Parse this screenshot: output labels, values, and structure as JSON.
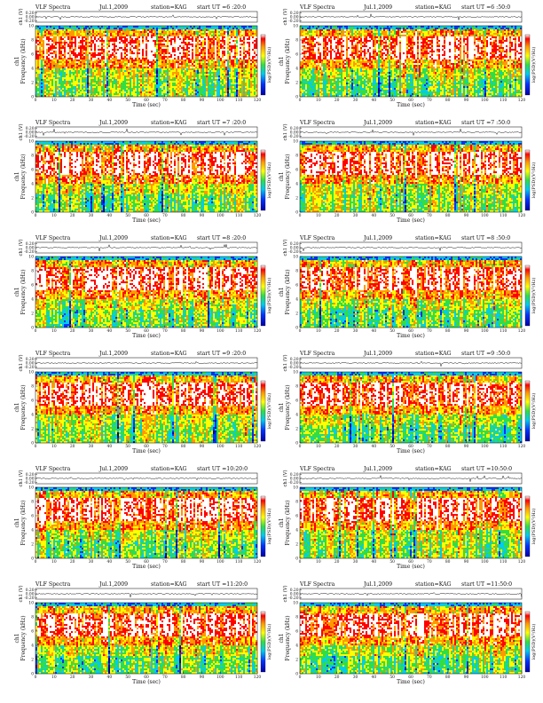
{
  "figure": {
    "prefix": "VLF Spectra",
    "date": "Jul.1,2009",
    "station": "station=KAG",
    "ut_prefix": "start UT ="
  },
  "chart_data": [
    {
      "type": "heatmap",
      "start_ut": "6 :20:0"
    },
    {
      "type": "heatmap",
      "start_ut": "6 :50:0"
    },
    {
      "type": "heatmap",
      "start_ut": "7 :20:0"
    },
    {
      "type": "heatmap",
      "start_ut": "7 :50:0"
    },
    {
      "type": "heatmap",
      "start_ut": "8 :20:0"
    },
    {
      "type": "heatmap",
      "start_ut": "8 :50:0"
    },
    {
      "type": "heatmap",
      "start_ut": "9 :20:0"
    },
    {
      "type": "heatmap",
      "start_ut": "9 :50:0"
    },
    {
      "type": "heatmap",
      "start_ut": "10:20:0"
    },
    {
      "type": "heatmap",
      "start_ut": "10:50:0"
    },
    {
      "type": "heatmap",
      "start_ut": "11:20:0"
    },
    {
      "type": "heatmap",
      "start_ut": "11:50:0"
    }
  ],
  "axes": {
    "xlabel": "Time (sec)",
    "ylabel_freq": "Frequency (kHz)",
    "ylabel_channel": "ch1",
    "ylabel_wave": "ch1 (V)",
    "colorbar_label": "log(PSD)(V²/Hz)",
    "x_ticks": [
      "0",
      "10",
      "20",
      "30",
      "40",
      "50",
      "60",
      "70",
      "80",
      "90",
      "100",
      "110",
      "120"
    ],
    "x_range": [
      0,
      120
    ],
    "freq_ticks": [
      "0",
      "2",
      "4",
      "6",
      "8",
      "10"
    ],
    "freq_range": [
      0,
      10
    ],
    "wave_ticks": [
      "0.20",
      "0.00",
      "-0.20"
    ],
    "wave_range": [
      -0.2,
      0.2
    ]
  },
  "colors": {
    "colormap": [
      "#0000aa",
      "#0033ff",
      "#00ccee",
      "#33dd44",
      "#ffff00",
      "#ff9900",
      "#ff0000",
      "#ffffff"
    ]
  }
}
